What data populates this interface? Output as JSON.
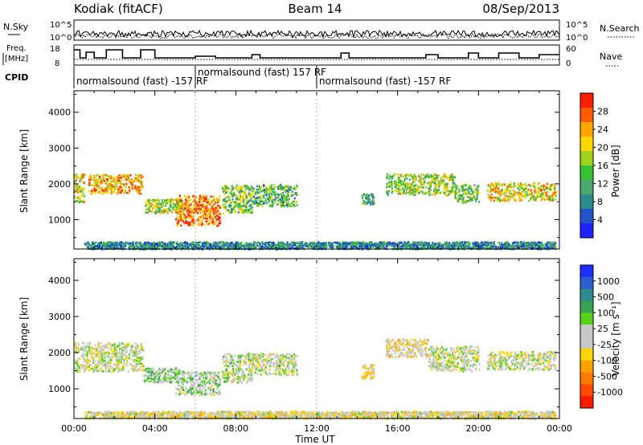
{
  "header": {
    "radar": "Kodiak (fitACF)",
    "beam": "Beam 14",
    "date": "08/Sep/2013"
  },
  "top_panels": {
    "nsky_label": "N.Sky",
    "nsearch_label": "N.Search",
    "noise_ticks": [
      "10^5",
      "10^0"
    ],
    "freq_label_line1": "Freq.",
    "freq_label_line2": "[MHz]",
    "freq_ticks": [
      "18",
      "8"
    ],
    "nave_label": "Nave",
    "nave_ticks": [
      "60",
      "0"
    ],
    "cpid_label": "CPID",
    "cpid_segments": [
      {
        "text": "normalsound (fast) -157 RF",
        "start_hour": 0.0,
        "row": 1
      },
      {
        "text": "normalsound (fast) 157 RF",
        "start_hour": 6.0,
        "row": 0
      },
      {
        "text": "normalsound (fast) -157 RF",
        "start_hour": 12.0,
        "row": 1
      }
    ]
  },
  "axes": {
    "xlabel": "Time UT",
    "x_ticks": [
      "00:00",
      "04:00",
      "08:00",
      "12:00",
      "16:00",
      "20:00",
      "00:00"
    ],
    "ylabel": "Slant Range [km]",
    "y_ticks": [
      "1000",
      "2000",
      "3000",
      "4000"
    ],
    "xlim_hours": [
      0,
      24
    ],
    "ylim_km": [
      180,
      4600
    ]
  },
  "power_colorbar": {
    "label": "Power [dB]",
    "ticks": [
      "4",
      "8",
      "12",
      "16",
      "20",
      "24",
      "28"
    ],
    "colors": [
      "#1f22ff",
      "#2255c8",
      "#2f8c8c",
      "#4aa86e",
      "#37c233",
      "#9fd11d",
      "#ffd700",
      "#ffa500",
      "#ff5a00",
      "#ff1e00"
    ]
  },
  "velocity_colorbar": {
    "label": "Velocity [m s⁻¹]",
    "ticks": [
      "1000",
      "500",
      "100",
      "25",
      "-25",
      "-100",
      "-500",
      "-1000"
    ],
    "colors": [
      "#1e2fff",
      "#2b5fd0",
      "#2f8c8c",
      "#3aa052",
      "#57d11a",
      "#c8c8c8",
      "#c8c8c8",
      "#ffd400",
      "#ffa200",
      "#ff7a00",
      "#ff4a00",
      "#ff1a00"
    ]
  },
  "chart_data": {
    "type": "heatmap",
    "title": "Kodiak (fitACF) Beam 14 08/Sep/2013",
    "xlabel": "Time UT",
    "ylabel": "Slant Range [km]",
    "x_range_hours": [
      0,
      24
    ],
    "y_range_km": [
      180,
      4600
    ],
    "panels": [
      {
        "name": "Power [dB]",
        "scale": [
          0,
          30
        ],
        "echo_regions": [
          {
            "t0": 0.7,
            "t1": 3.4,
            "r0": 1750,
            "r1": 2300,
            "value": 22
          },
          {
            "t0": 0.0,
            "t1": 0.5,
            "r0": 1500,
            "r1": 2300,
            "value": 18
          },
          {
            "t0": 3.5,
            "t1": 5.4,
            "r0": 1200,
            "r1": 1600,
            "value": 16
          },
          {
            "t0": 5.0,
            "t1": 7.2,
            "r0": 850,
            "r1": 1700,
            "value": 24
          },
          {
            "t0": 7.3,
            "t1": 8.8,
            "r0": 1200,
            "r1": 2000,
            "value": 14
          },
          {
            "t0": 8.8,
            "t1": 11.0,
            "r0": 1400,
            "r1": 2000,
            "value": 12
          },
          {
            "t0": 14.2,
            "t1": 14.8,
            "r0": 1450,
            "r1": 1750,
            "value": 10
          },
          {
            "t0": 15.4,
            "t1": 18.8,
            "r0": 1700,
            "r1": 2300,
            "value": 16
          },
          {
            "t0": 18.8,
            "t1": 20.0,
            "r0": 1500,
            "r1": 2000,
            "value": 14
          },
          {
            "t0": 20.4,
            "t1": 23.8,
            "r0": 1550,
            "r1": 2050,
            "value": 20
          },
          {
            "t0": 0.5,
            "t1": 23.8,
            "r0": 200,
            "r1": 400,
            "value": 8
          }
        ]
      },
      {
        "name": "Velocity [m s⁻¹]",
        "scale": [
          -1000,
          1000
        ],
        "echo_regions": [
          {
            "t0": 0.0,
            "t1": 3.4,
            "r0": 1500,
            "r1": 2300,
            "value": 0
          },
          {
            "t0": 3.4,
            "t1": 5.4,
            "r0": 1200,
            "r1": 1600,
            "value": 150
          },
          {
            "t0": 5.0,
            "t1": 7.2,
            "r0": 850,
            "r1": 1500,
            "value": 120
          },
          {
            "t0": 7.3,
            "t1": 8.8,
            "r0": 1200,
            "r1": 2000,
            "value": 60
          },
          {
            "t0": 8.8,
            "t1": 11.0,
            "r0": 1400,
            "r1": 2000,
            "value": 40
          },
          {
            "t0": 14.2,
            "t1": 14.8,
            "r0": 1300,
            "r1": 1700,
            "value": -200
          },
          {
            "t0": 15.4,
            "t1": 17.5,
            "r0": 1900,
            "r1": 2400,
            "value": -150
          },
          {
            "t0": 17.5,
            "t1": 20.0,
            "r0": 1500,
            "r1": 2200,
            "value": 0
          },
          {
            "t0": 20.4,
            "t1": 23.8,
            "r0": 1550,
            "r1": 2050,
            "value": 0
          },
          {
            "t0": 0.5,
            "t1": 23.8,
            "r0": 200,
            "r1": 400,
            "value": -80
          }
        ]
      }
    ]
  }
}
